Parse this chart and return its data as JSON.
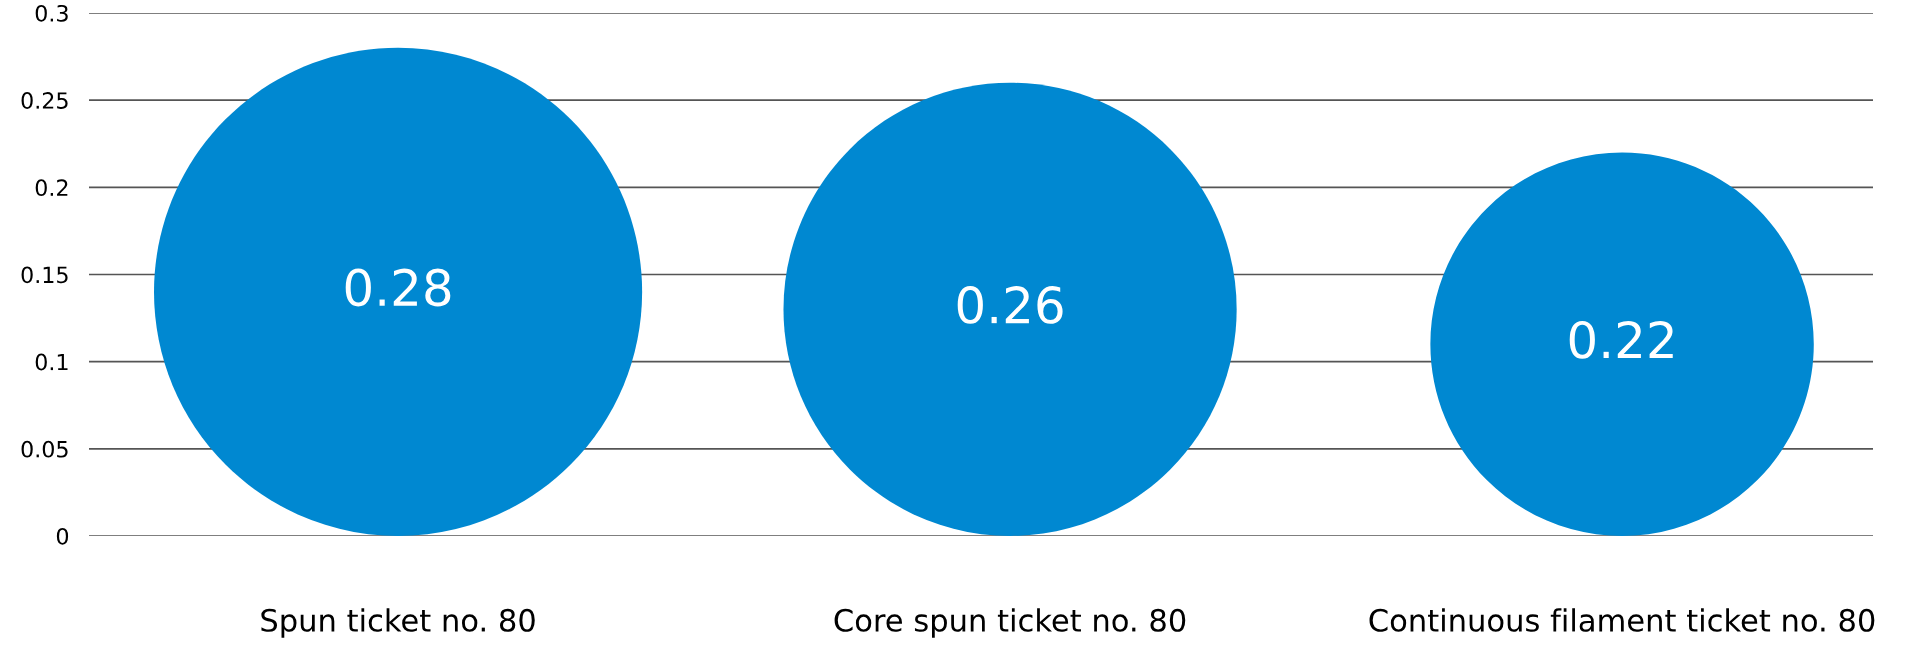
{
  "chart_data": {
    "type": "bubble",
    "categories": [
      "Spun ticket no. 80",
      "Core spun ticket no. 80",
      "Continuous filament ticket no. 80"
    ],
    "values": [
      0.14,
      0.13,
      0.11
    ],
    "sizes": [
      1,
      0.862,
      0.617
    ],
    "annotations": [
      {
        "text": "0.28",
        "x": "Spun ticket no. 80",
        "y": 0.14
      },
      {
        "text": "0.26",
        "x": "Core spun ticket no. 80",
        "y": 0.13
      },
      {
        "text": "0.22",
        "x": "Continuous filament ticket no. 80",
        "y": 0.11
      }
    ],
    "color": "#0088d1",
    "ylim": [
      0,
      0.3
    ],
    "yticks": [
      0,
      0.05,
      0.1,
      0.15,
      0.2,
      0.25,
      0.3
    ],
    "grid": "y",
    "legend": false
  }
}
